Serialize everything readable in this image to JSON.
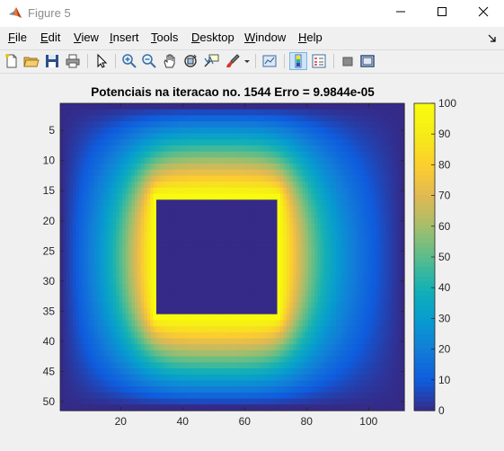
{
  "window": {
    "title": "Figure 5"
  },
  "menu": {
    "items": [
      "File",
      "Edit",
      "View",
      "Insert",
      "Tools",
      "Desktop",
      "Window",
      "Help"
    ]
  },
  "toolbar": {
    "buttons": [
      {
        "name": "new-figure-icon"
      },
      {
        "name": "open-file-icon"
      },
      {
        "name": "save-icon"
      },
      {
        "name": "print-icon"
      },
      {
        "name": "edit-plot-arrow-icon"
      },
      {
        "name": "zoom-in-icon"
      },
      {
        "name": "zoom-out-icon"
      },
      {
        "name": "pan-hand-icon"
      },
      {
        "name": "rotate-3d-icon"
      },
      {
        "name": "data-cursor-icon"
      },
      {
        "name": "brush-icon"
      },
      {
        "name": "link-plot-icon"
      },
      {
        "name": "colorbar-toggle-icon"
      },
      {
        "name": "legend-toggle-icon"
      },
      {
        "name": "hide-plot-tools-icon"
      },
      {
        "name": "show-plot-tools-icon"
      }
    ]
  },
  "chart_data": {
    "type": "heatmap",
    "title": "Potenciais na iteracao no. 1544   Erro = 9.9844e-05",
    "xlim": [
      0.5,
      111.5
    ],
    "ylim": [
      0.5,
      51.5
    ],
    "y_reversed": true,
    "x_ticks": [
      20,
      40,
      60,
      80,
      100
    ],
    "y_ticks": [
      5,
      10,
      15,
      20,
      25,
      30,
      35,
      40,
      45,
      50
    ],
    "colorbar": {
      "range": [
        0,
        100
      ],
      "ticks": [
        0,
        10,
        20,
        30,
        40,
        50,
        60,
        70,
        80,
        90,
        100
      ],
      "colormap": "parula"
    },
    "grid": {
      "cols": 111,
      "rows": 51,
      "boundary_value": 0,
      "electrode": {
        "value": 100,
        "x_range": [
          31,
          71
        ],
        "y_range": [
          16,
          36
        ],
        "interior_value": 0,
        "interior_x_range": [
          32,
          70
        ],
        "interior_y_range": [
          17,
          35
        ]
      }
    }
  }
}
